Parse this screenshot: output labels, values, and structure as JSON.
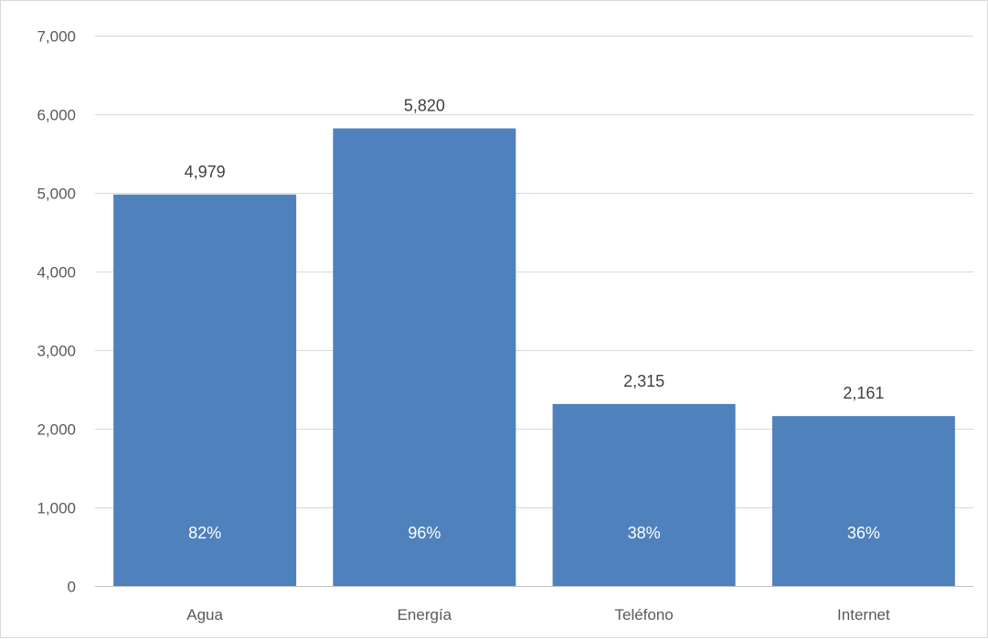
{
  "chart_data": {
    "type": "bar",
    "categories": [
      "Agua",
      "Energía",
      "Teléfono",
      "Internet"
    ],
    "values": [
      4979,
      5820,
      2315,
      2161
    ],
    "value_labels": [
      "4,979",
      "5,820",
      "2,315",
      "2,161"
    ],
    "percent_labels": [
      "82%",
      "96%",
      "38%",
      "36%"
    ],
    "ylim": [
      0,
      7000
    ],
    "y_ticks": [
      0,
      1000,
      2000,
      3000,
      4000,
      5000,
      6000,
      7000
    ],
    "y_tick_labels": [
      "0",
      "1,000",
      "2,000",
      "3,000",
      "4,000",
      "5,000",
      "6,000",
      "7,000"
    ],
    "title": "",
    "xlabel": "",
    "ylabel": "",
    "grid": true,
    "legend": "none",
    "colors": {
      "bar": "#4f81bd",
      "grid": "#d9d9d9",
      "axis": "#bfbfbf",
      "text": "#595959"
    }
  }
}
